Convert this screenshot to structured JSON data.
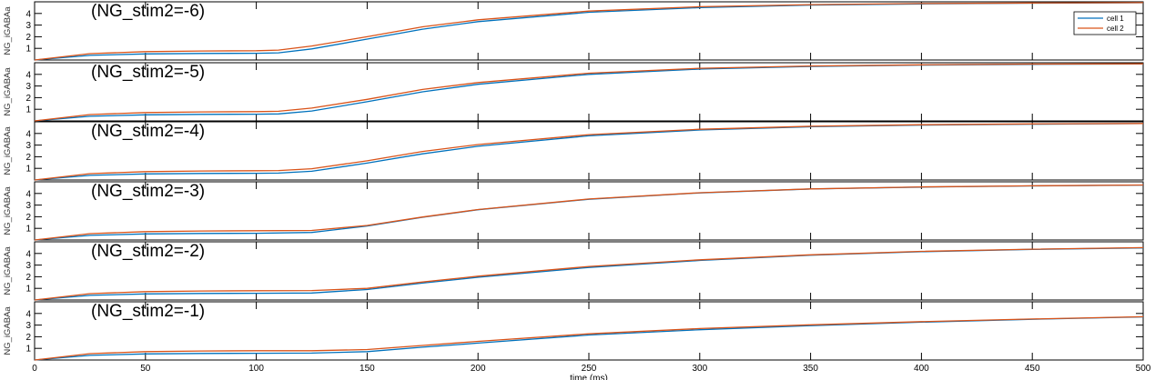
{
  "chart_data": {
    "type": "line",
    "xlabel": "time (ms)",
    "xlim": [
      0,
      500
    ],
    "ylim": [
      0,
      5
    ],
    "x_ticks": [
      0,
      50,
      100,
      150,
      200,
      250,
      300,
      350,
      400,
      450,
      500
    ],
    "y_ticks": [
      1,
      2,
      3,
      4
    ],
    "legend": {
      "placement": "top-right",
      "entries": [
        "cell 1",
        "cell 2"
      ]
    },
    "colors": {
      "cell 1": "#0072BD",
      "cell 2": "#D95319"
    },
    "grid": false,
    "panels": [
      {
        "title": "(NG_stim2=-6)",
        "ylabel": "NG_iGABAa",
        "x": [
          0,
          25,
          50,
          75,
          100,
          110,
          125,
          150,
          175,
          200,
          250,
          300,
          350,
          400,
          450,
          500
        ],
        "series": [
          {
            "name": "cell 1",
            "values": [
              0.0,
              0.4,
              0.52,
              0.56,
              0.58,
              0.62,
              0.95,
              1.8,
              2.65,
              3.3,
              4.1,
              4.5,
              4.72,
              4.82,
              4.88,
              4.92
            ]
          },
          {
            "name": "cell 2",
            "values": [
              0.0,
              0.55,
              0.72,
              0.77,
              0.8,
              0.85,
              1.2,
              2.0,
              2.85,
              3.45,
              4.2,
              4.58,
              4.76,
              4.85,
              4.9,
              4.93
            ]
          }
        ]
      },
      {
        "title": "(NG_stim2=-5)",
        "ylabel": "NG_iGABAa",
        "x": [
          0,
          25,
          50,
          75,
          100,
          110,
          125,
          150,
          175,
          200,
          250,
          300,
          350,
          400,
          450,
          500
        ],
        "series": [
          {
            "name": "cell 1",
            "values": [
              0.0,
              0.4,
              0.52,
              0.56,
              0.58,
              0.6,
              0.85,
              1.65,
              2.5,
              3.15,
              4.0,
              4.45,
              4.68,
              4.8,
              4.86,
              4.9
            ]
          },
          {
            "name": "cell 2",
            "values": [
              0.0,
              0.55,
              0.72,
              0.77,
              0.8,
              0.83,
              1.1,
              1.85,
              2.7,
              3.3,
              4.1,
              4.52,
              4.72,
              4.82,
              4.88,
              4.91
            ]
          }
        ]
      },
      {
        "title": "(NG_stim2=-4)",
        "ylabel": "NG_iGABAa",
        "x": [
          0,
          25,
          50,
          75,
          100,
          110,
          125,
          150,
          175,
          200,
          250,
          300,
          350,
          400,
          450,
          500
        ],
        "series": [
          {
            "name": "cell 1",
            "values": [
              0.0,
              0.4,
              0.52,
              0.56,
              0.58,
              0.59,
              0.75,
              1.45,
              2.25,
              2.9,
              3.8,
              4.3,
              4.58,
              4.72,
              4.8,
              4.85
            ]
          },
          {
            "name": "cell 2",
            "values": [
              0.0,
              0.55,
              0.72,
              0.77,
              0.8,
              0.81,
              0.97,
              1.65,
              2.45,
              3.05,
              3.9,
              4.36,
              4.62,
              4.75,
              4.82,
              4.86
            ]
          }
        ]
      },
      {
        "title": "(NG_stim2=-3)",
        "ylabel": "NG_iGABAa",
        "x": [
          0,
          25,
          50,
          75,
          100,
          125,
          150,
          175,
          200,
          250,
          300,
          350,
          400,
          450,
          500
        ],
        "series": [
          {
            "name": "cell 1",
            "values": [
              0.0,
              0.4,
              0.52,
              0.56,
              0.58,
              0.65,
              1.2,
              1.95,
              2.6,
              3.5,
              4.05,
              4.38,
              4.55,
              4.65,
              4.72
            ]
          },
          {
            "name": "cell 2",
            "values": [
              0.0,
              0.55,
              0.72,
              0.77,
              0.8,
              0.82,
              1.25,
              1.98,
              2.62,
              3.52,
              4.06,
              4.39,
              4.56,
              4.66,
              4.73
            ]
          }
        ]
      },
      {
        "title": "(NG_stim2=-2)",
        "ylabel": "NG_iGABAa",
        "x": [
          0,
          25,
          50,
          75,
          100,
          125,
          150,
          175,
          200,
          250,
          300,
          350,
          400,
          450,
          500
        ],
        "series": [
          {
            "name": "cell 1",
            "values": [
              0.0,
              0.4,
              0.52,
              0.56,
              0.58,
              0.6,
              0.9,
              1.45,
              1.95,
              2.8,
              3.4,
              3.85,
              4.15,
              4.35,
              4.48
            ]
          },
          {
            "name": "cell 2",
            "values": [
              0.0,
              0.55,
              0.72,
              0.77,
              0.8,
              0.81,
              1.0,
              1.55,
              2.05,
              2.88,
              3.45,
              3.88,
              4.18,
              4.37,
              4.5
            ]
          }
        ]
      },
      {
        "title": "(NG_stim2=-1)",
        "ylabel": "NG_iGABAa",
        "x": [
          0,
          25,
          50,
          75,
          100,
          125,
          150,
          175,
          200,
          250,
          300,
          350,
          400,
          450,
          500
        ],
        "series": [
          {
            "name": "cell 1",
            "values": [
              0.0,
              0.4,
              0.52,
              0.56,
              0.58,
              0.59,
              0.72,
              1.1,
              1.45,
              2.15,
              2.6,
              2.95,
              3.25,
              3.5,
              3.7
            ]
          },
          {
            "name": "cell 2",
            "values": [
              0.0,
              0.55,
              0.72,
              0.77,
              0.8,
              0.8,
              0.9,
              1.25,
              1.6,
              2.25,
              2.7,
              3.02,
              3.3,
              3.52,
              3.72
            ]
          }
        ]
      }
    ]
  }
}
